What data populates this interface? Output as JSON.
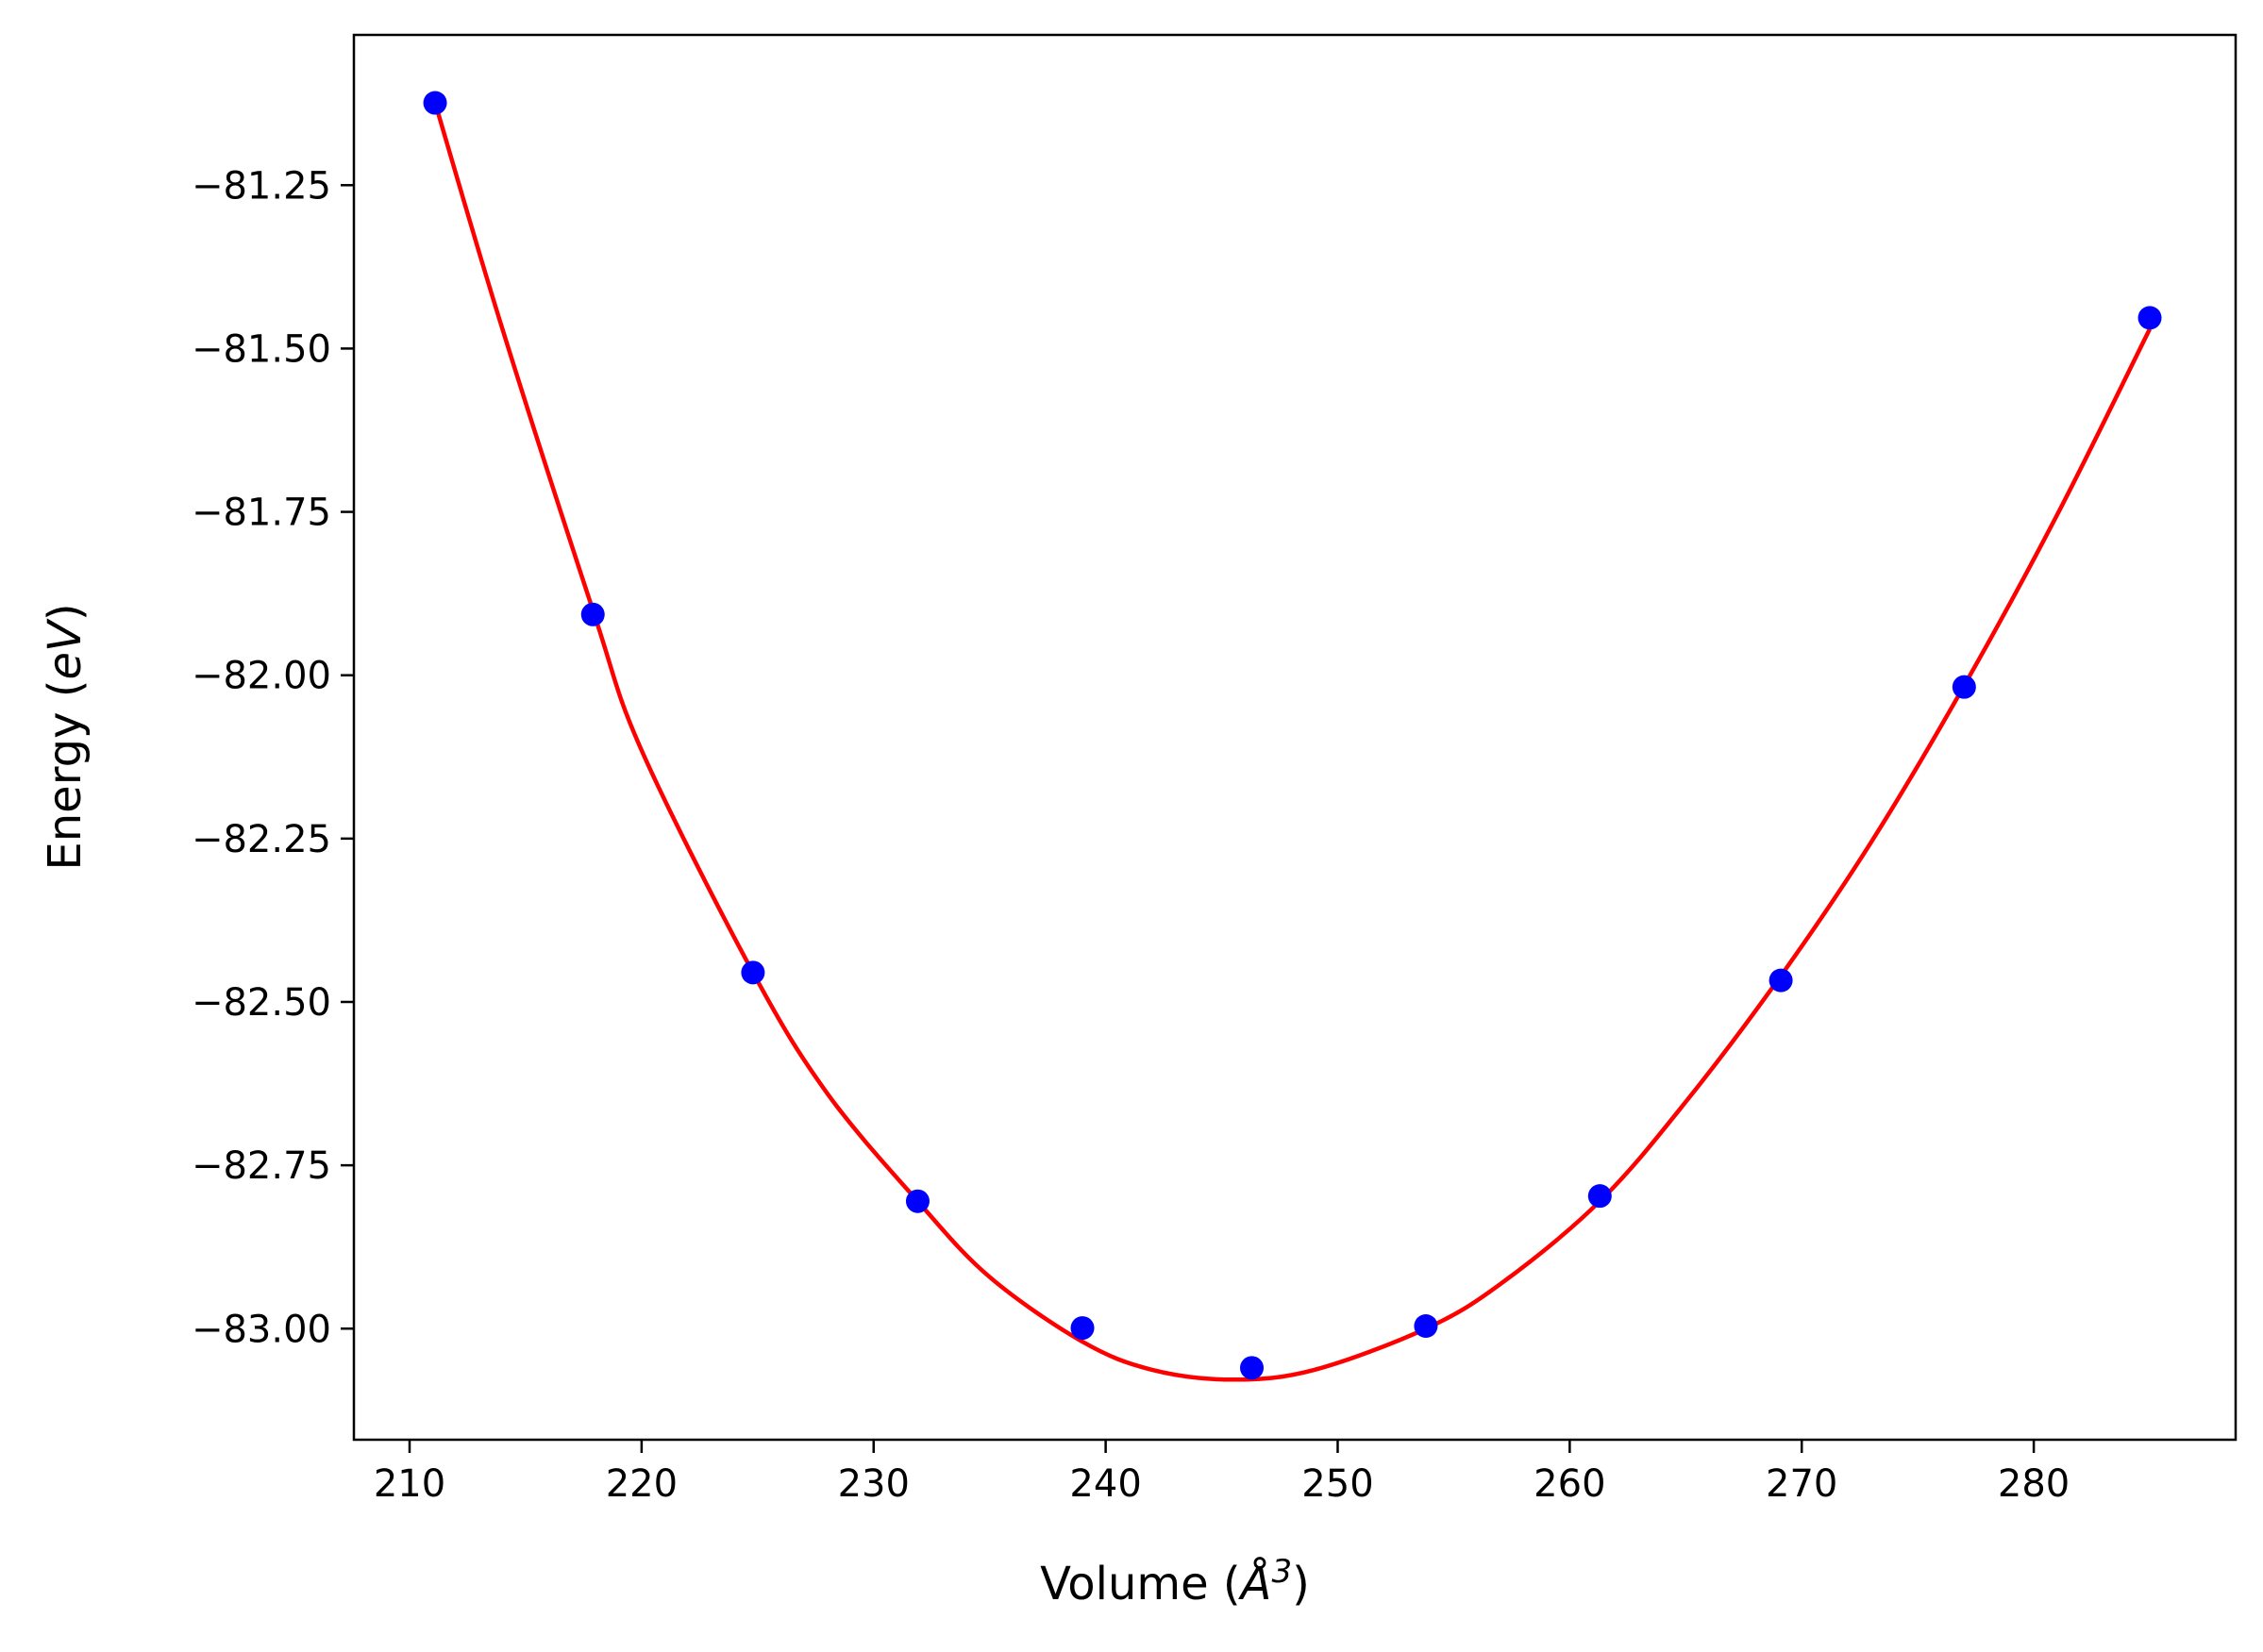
{
  "chart_data": {
    "type": "scatter",
    "title": "",
    "xlabel": "Volume (Å³)",
    "ylabel": "Energy (eV)",
    "xlabel_parts": {
      "prefix": "Volume (",
      "unit": "Å",
      "exponent": "3",
      "suffix": ")"
    },
    "ylabel_parts": {
      "prefix": "Energy (",
      "unit": "eV",
      "suffix": ")"
    },
    "xlim": [
      207.6,
      288.7
    ],
    "ylim": [
      -83.17,
      -81.02
    ],
    "x_ticks": [
      210,
      220,
      230,
      240,
      250,
      260,
      270,
      280
    ],
    "y_ticks": [
      -81.25,
      -81.5,
      -81.75,
      -82.0,
      -82.25,
      -82.5,
      -82.75,
      -83.0
    ],
    "x_tick_labels": [
      "210",
      "220",
      "230",
      "240",
      "250",
      "260",
      "270",
      "280"
    ],
    "y_tick_labels": [
      "−81.25",
      "−81.50",
      "−81.75",
      "−82.00",
      "−82.25",
      "−82.50",
      "−82.75",
      "−83.00"
    ],
    "grid": false,
    "series": [
      {
        "kind": "points",
        "color": "#0000ff",
        "x": [
          211.1,
          217.9,
          224.8,
          231.9,
          239.0,
          246.3,
          253.8,
          261.3,
          269.1,
          277.0,
          285.0
        ],
        "y": [
          -81.124,
          -81.907,
          -82.455,
          -82.805,
          -82.999,
          -83.06,
          -82.996,
          -82.797,
          -82.467,
          -82.018,
          -81.453
        ]
      },
      {
        "kind": "fit-curve",
        "color": "#ff0000",
        "x": [
          211.1,
          214.0,
          217.9,
          220.0,
          224.8,
          228.0,
          231.9,
          235.0,
          239.0,
          242.0,
          245.5,
          249.0,
          253.8,
          257.0,
          261.3,
          265.0,
          269.1,
          273.0,
          277.0,
          281.0,
          285.0
        ],
        "y": [
          -81.124,
          -81.47,
          -81.9,
          -82.115,
          -82.455,
          -82.64,
          -82.805,
          -82.921,
          -83.02,
          -83.063,
          -83.078,
          -83.063,
          -83.0,
          -82.932,
          -82.805,
          -82.653,
          -82.46,
          -82.255,
          -82.016,
          -81.755,
          -81.47
        ]
      }
    ]
  }
}
